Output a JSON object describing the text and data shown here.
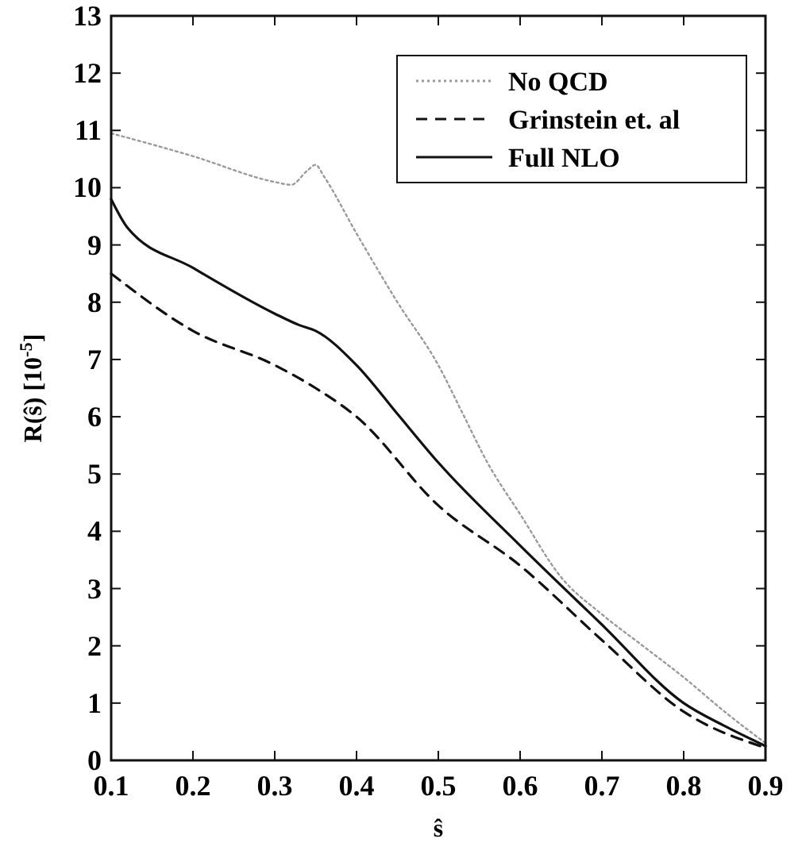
{
  "chart_data": {
    "type": "line",
    "xlabel": "ŝ",
    "ylabel": "R(ŝ) [10$^{-5}$]",
    "xlim": [
      0.1,
      0.9
    ],
    "ylim": [
      0,
      13
    ],
    "xticks": [
      0.1,
      0.2,
      0.3,
      0.4,
      0.5,
      0.6,
      0.7,
      0.8,
      0.9
    ],
    "yticks": [
      0,
      1,
      2,
      3,
      4,
      5,
      6,
      7,
      8,
      9,
      10,
      11,
      12,
      13
    ],
    "grid": false,
    "legend": "top right",
    "series": [
      {
        "name": "No QCD",
        "color": "#9a9a9a",
        "line_style": "dotted",
        "x": [
          0.1,
          0.2,
          0.3,
          0.32,
          0.34,
          0.35,
          0.36,
          0.4,
          0.45,
          0.5,
          0.53,
          0.56,
          0.6,
          0.65,
          0.7,
          0.75,
          0.8,
          0.85,
          0.9
        ],
        "values": [
          10.95,
          10.55,
          10.1,
          10.05,
          10.3,
          10.4,
          10.2,
          9.2,
          8.0,
          6.9,
          6.05,
          5.2,
          4.3,
          3.2,
          2.55,
          2.0,
          1.45,
          0.85,
          0.3
        ]
      },
      {
        "name": "Grinstein et. al",
        "color": "#111111",
        "line_style": "dashed",
        "x": [
          0.1,
          0.2,
          0.3,
          0.35,
          0.4,
          0.5,
          0.6,
          0.7,
          0.8,
          0.9
        ],
        "values": [
          8.5,
          7.5,
          6.9,
          6.5,
          6.0,
          4.45,
          3.4,
          2.1,
          0.85,
          0.22
        ]
      },
      {
        "name": "Full NLO",
        "color": "#111111",
        "line_style": "solid",
        "x": [
          0.1,
          0.12,
          0.2,
          0.3,
          0.33,
          0.35,
          0.4,
          0.45,
          0.5,
          0.6,
          0.7,
          0.8,
          0.85,
          0.9
        ],
        "values": [
          9.8,
          9.3,
          8.6,
          7.8,
          7.6,
          7.5,
          6.9,
          6.05,
          5.2,
          3.75,
          2.37,
          1.0,
          0.6,
          0.25
        ]
      }
    ]
  }
}
